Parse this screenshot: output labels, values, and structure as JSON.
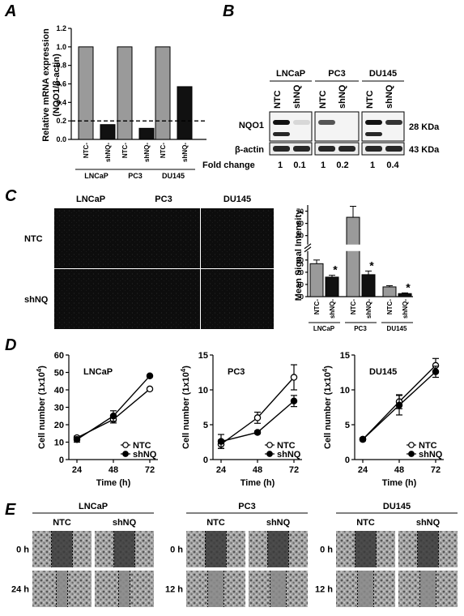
{
  "panels": {
    "A": {
      "label": "A",
      "ylabel_line1": "Relative mRNA expression",
      "ylabel_line2": "(NQO1/β-actin)",
      "groups": [
        "LNCaP",
        "PC3",
        "DU145"
      ],
      "conditions": [
        "NTC",
        "shNQ"
      ],
      "yticks": [
        "0.0",
        "0.2",
        "0.4",
        "0.6",
        "0.8",
        "1.0",
        "1.2"
      ]
    },
    "B": {
      "label": "B",
      "lanes": [
        "LNCaP",
        "PC3",
        "DU145"
      ],
      "conditions": [
        "NTC",
        "shNQ"
      ],
      "rows": [
        "NQO1",
        "β-actin"
      ],
      "sizes": [
        "28 KDa",
        "43 KDa"
      ],
      "fold_label": "Fold change",
      "fold_values": [
        "1",
        "0.1",
        "1",
        "0.2",
        "1",
        "0.4"
      ]
    },
    "C": {
      "label": "C",
      "columns": [
        "LNCaP",
        "PC3",
        "DU145"
      ],
      "rows": [
        "NTC",
        "shNQ"
      ],
      "ylabel": "Mean Signal Intensity",
      "yticks_low": [
        "0",
        "10",
        "20",
        "30"
      ],
      "yticks_high": [
        "50",
        "60",
        "70"
      ],
      "groups": [
        "LNCaP",
        "PC3",
        "DU145"
      ],
      "conditions": [
        "NTC",
        "shNQ"
      ],
      "star": "*"
    },
    "D": {
      "label": "D",
      "xlabel": "Time (h)",
      "ylabel": "Cell number (1x10",
      "ylabel_sup": "4",
      "ylabel_end": ")",
      "legend": [
        "NTC",
        "shNQ"
      ],
      "xticks": [
        "24",
        "48",
        "72"
      ],
      "plots": [
        {
          "title": "LNCaP",
          "yticks": [
            "0",
            "10",
            "20",
            "30",
            "40",
            "50",
            "60"
          ]
        },
        {
          "title": "PC3",
          "yticks": [
            "0",
            "5",
            "10",
            "15"
          ]
        },
        {
          "title": "DU145",
          "yticks": [
            "0",
            "5",
            "10",
            "15"
          ]
        }
      ]
    },
    "E": {
      "label": "E",
      "groups": [
        {
          "name": "LNCaP",
          "times": [
            "0 h",
            "24 h"
          ]
        },
        {
          "name": "PC3",
          "times": [
            "0 h",
            "12 h"
          ]
        },
        {
          "name": "DU145",
          "times": [
            "0 h",
            "12 h"
          ]
        }
      ],
      "conditions": [
        "NTC",
        "shNQ"
      ]
    }
  },
  "chart_data": [
    {
      "type": "bar",
      "panel": "A",
      "title": "",
      "ylabel": "Relative mRNA expression (NQO1/β-actin)",
      "categories": [
        "LNCaP",
        "PC3",
        "DU145"
      ],
      "series": [
        {
          "name": "NTC",
          "values": [
            1.0,
            1.0,
            1.0
          ]
        },
        {
          "name": "shNQ",
          "values": [
            0.16,
            0.12,
            0.57
          ]
        }
      ],
      "reference_line": 0.2,
      "ylim": [
        0,
        1.2
      ]
    },
    {
      "type": "bar",
      "panel": "C",
      "title": "",
      "ylabel": "Mean Signal Intensity",
      "categories": [
        "LNCaP",
        "PC3",
        "DU145"
      ],
      "series": [
        {
          "name": "NTC",
          "values": [
            27,
            65,
            8
          ],
          "errors": [
            3,
            9,
            1
          ]
        },
        {
          "name": "shNQ",
          "values": [
            16,
            18,
            2.5
          ],
          "errors": [
            1.5,
            3,
            0.6
          ]
        }
      ],
      "ylim": [
        0,
        75
      ]
    },
    {
      "type": "line",
      "panel": "D",
      "title": "LNCaP",
      "xlabel": "Time (h)",
      "x": [
        24,
        48,
        72
      ],
      "series": [
        {
          "name": "NTC",
          "values": [
            12.5,
            23,
            40.5
          ],
          "errors": [
            1,
            2,
            0.5
          ]
        },
        {
          "name": "shNQ",
          "values": [
            11.5,
            25,
            48
          ],
          "errors": [
            1.5,
            3,
            0.5
          ]
        }
      ],
      "ylim": [
        0,
        60
      ]
    },
    {
      "type": "line",
      "panel": "D",
      "title": "PC3",
      "xlabel": "Time (h)",
      "x": [
        24,
        48,
        72
      ],
      "series": [
        {
          "name": "NTC",
          "values": [
            2.2,
            6.0,
            11.8
          ],
          "errors": [
            0.6,
            0.8,
            1.8
          ]
        },
        {
          "name": "shNQ",
          "values": [
            2.6,
            3.9,
            8.4
          ],
          "errors": [
            1.0,
            0.2,
            0.8
          ]
        }
      ],
      "ylim": [
        0,
        15
      ]
    },
    {
      "type": "line",
      "panel": "D",
      "title": "DU145",
      "xlabel": "Time (h)",
      "x": [
        24,
        48,
        72
      ],
      "series": [
        {
          "name": "NTC",
          "values": [
            2.9,
            8.3,
            13.5
          ],
          "errors": [
            0.2,
            1.0,
            1.0
          ]
        },
        {
          "name": "shNQ",
          "values": [
            2.9,
            7.8,
            12.6
          ],
          "errors": [
            0.2,
            1.4,
            0.8
          ]
        }
      ],
      "ylim": [
        0,
        15
      ]
    }
  ]
}
